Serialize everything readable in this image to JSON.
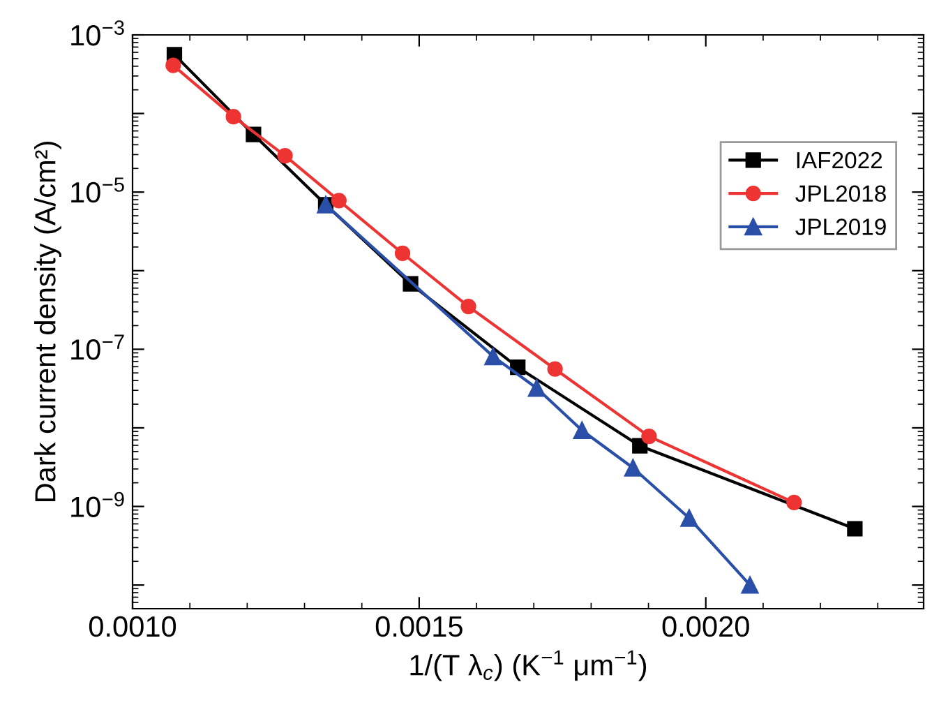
{
  "chart_data": {
    "type": "line",
    "xlabel": "1/(T λ$_{c}$) (K$^{−1}$ μm$^{−1}$)",
    "ylabel": "Dark current density (A/cm²)",
    "log": "y",
    "xlim": [
      0.001,
      0.00238
    ],
    "xticks": [
      {
        "value": 0.001,
        "label": "0.0010"
      },
      {
        "value": 0.0015,
        "label": "0.0015"
      },
      {
        "value": 0.002,
        "label": "0.0020"
      }
    ],
    "ylim": [
      5e-11,
      0.001
    ],
    "yticks": [
      {
        "value": 1e-10,
        "label": null
      },
      {
        "value": 1e-09,
        "label": "10$^{−9}$"
      },
      {
        "value": 1e-08,
        "label": null
      },
      {
        "value": 1e-07,
        "label": "10$^{−7}$"
      },
      {
        "value": 1e-06,
        "label": null
      },
      {
        "value": 1e-05,
        "label": "10$^{−5}$"
      },
      {
        "value": 0.0001,
        "label": null
      },
      {
        "value": 0.001,
        "label": "10$^{−3}$"
      }
    ],
    "grid": false,
    "legend": "right",
    "line_style": "solid",
    "series": [
      {
        "name": "IAF2022",
        "color": "#000000",
        "marker": "square",
        "x": [
          0.001073,
          0.001211,
          0.001337,
          0.001485,
          0.001672,
          0.001885,
          0.00226
        ],
        "values": [
          0.00056,
          5.4e-05,
          6.9e-06,
          6.8e-07,
          5.9e-08,
          5.9e-09,
          5.2e-10
        ]
      },
      {
        "name": "JPL2018",
        "color": "#ee3333",
        "marker": "circle",
        "x": [
          0.001071,
          0.001176,
          0.001266,
          0.00136,
          0.001471,
          0.001586,
          0.001737,
          0.001901,
          0.002154
        ],
        "values": [
          0.00041,
          9.1e-05,
          2.9e-05,
          7.8e-06,
          1.66e-06,
          3.5e-07,
          5.6e-08,
          7.8e-09,
          1.12e-09
        ]
      },
      {
        "name": "JPL2019",
        "color": "#2a4fa8",
        "marker": "triangle",
        "x": [
          0.001337,
          0.001629,
          0.001705,
          0.001784,
          0.001873,
          0.001971,
          0.002077
        ],
        "values": [
          6.9e-06,
          8.1e-08,
          3.2e-08,
          9.3e-09,
          3.1e-09,
          7.1e-10,
          1e-10
        ]
      }
    ]
  }
}
